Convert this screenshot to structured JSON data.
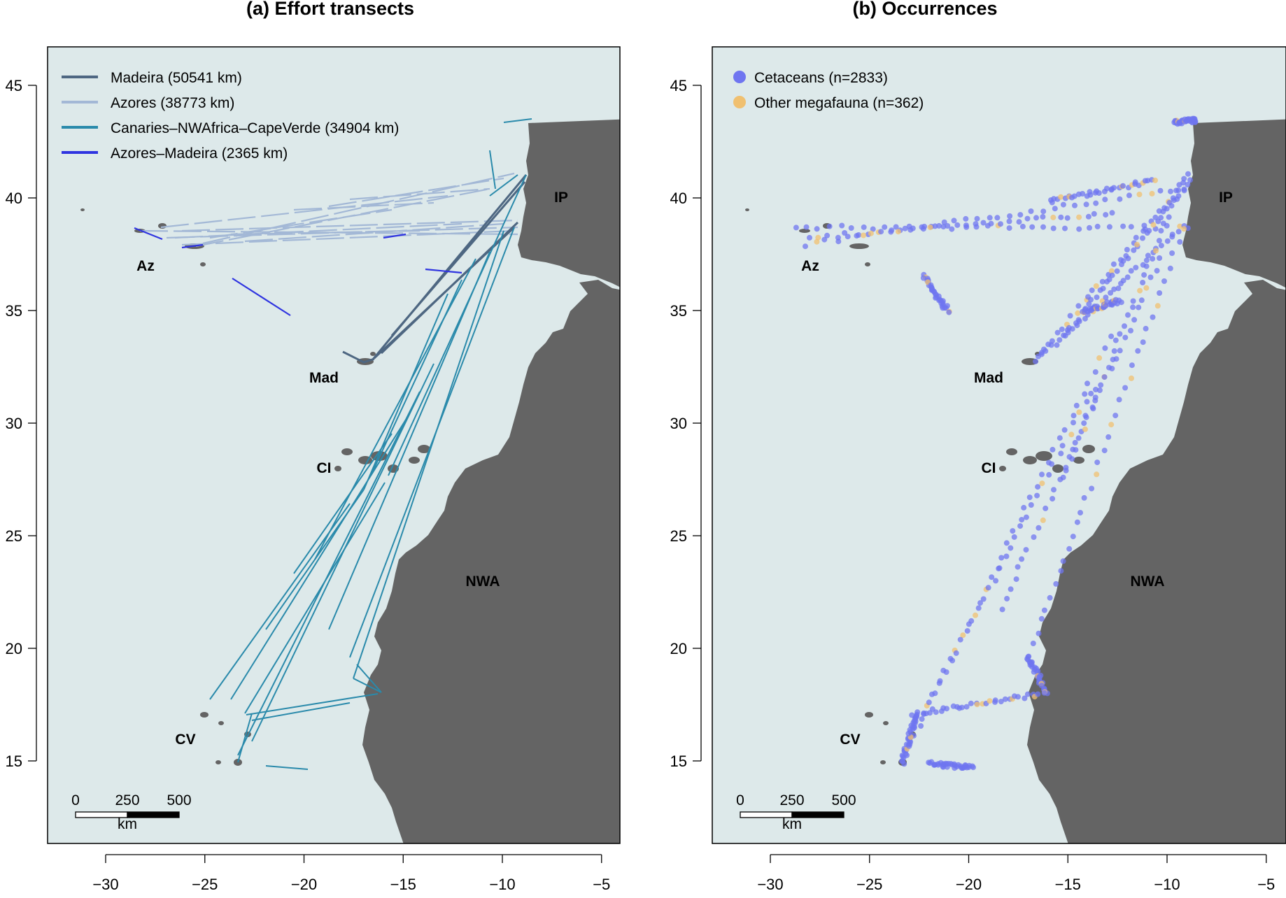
{
  "panels": [
    {
      "id": "a",
      "title": "(a) Effort transects",
      "legend": [
        {
          "label": "Madeira (50541 km)",
          "color": "#4e6782"
        },
        {
          "label": "Azores (38773 km)",
          "color": "#a3b8d6"
        },
        {
          "label": "Canaries–NWAfrica–CapeVerde (34904 km)",
          "color": "#2a8aab"
        },
        {
          "label": "Azores–Madeira (2365 km)",
          "color": "#2f34e0"
        }
      ]
    },
    {
      "id": "b",
      "title": "(b) Occurrences",
      "legend": [
        {
          "label": "Cetaceans (n=2833)",
          "color": "#6f75f0"
        },
        {
          "label": "Other megafauna (n=362)",
          "color": "#f0c070"
        }
      ]
    }
  ],
  "axes": {
    "x_ticks": [
      "−30",
      "−25",
      "−20",
      "−15",
      "−10",
      "−5"
    ],
    "y_ticks": [
      "45",
      "40",
      "35",
      "30",
      "25",
      "20",
      "15"
    ]
  },
  "places": [
    "Az",
    "IP",
    "Mad",
    "CI",
    "NWA",
    "CV"
  ],
  "scale_bar": {
    "labels": [
      "0",
      "250",
      "500"
    ],
    "unit": "km"
  },
  "colors": {
    "sea": "#dde9ea",
    "land": "#646464"
  },
  "chart_data": {
    "type": "map",
    "xlim": [
      -33,
      -4.5
    ],
    "ylim": [
      11,
      47
    ],
    "x_axis": "longitude",
    "y_axis": "latitude",
    "legend_placement": "top-left",
    "effort_transects": [
      {
        "name": "Madeira (50541 km)",
        "length_km": 50541
      },
      {
        "name": "Azores (38773 km)",
        "length_km": 38773
      },
      {
        "name": "Canaries–NWAfrica–CapeVerde (34904 km)",
        "length_km": 34904
      },
      {
        "name": "Azores–Madeira (2365 km)",
        "length_km": 2365
      }
    ],
    "occurrences": [
      {
        "name": "Cetaceans",
        "n": 2833
      },
      {
        "name": "Other megafauna",
        "n": 362
      }
    ]
  }
}
